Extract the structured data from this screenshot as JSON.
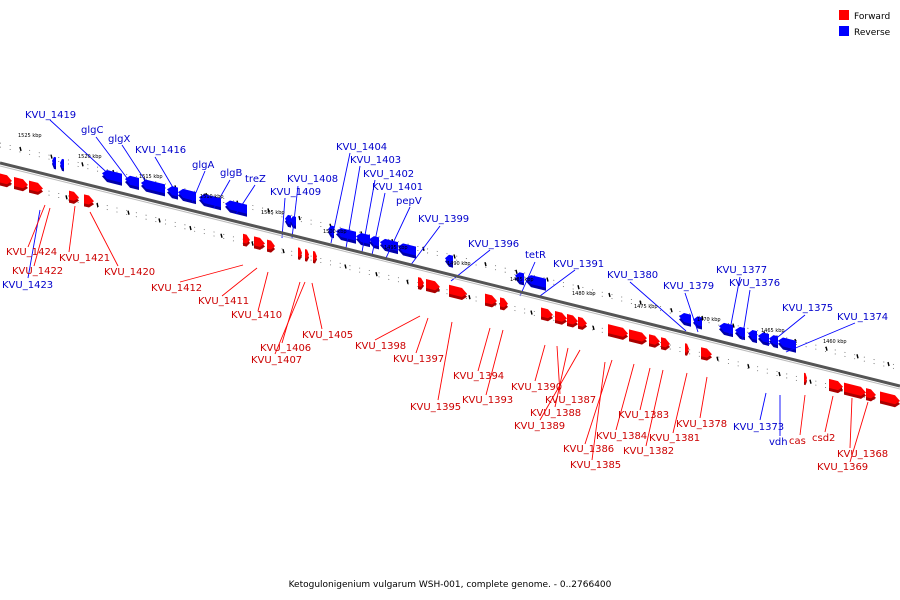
{
  "legend": {
    "items": [
      {
        "label": "Forward",
        "color": "#ff0000"
      },
      {
        "label": "Reverse",
        "color": "#0000ff"
      }
    ]
  },
  "caption": "Ketogulonigenium vulgarum WSH-001, complete genome. - 0..2766400",
  "colors": {
    "forward": "#ff0000",
    "forward_label": "#cc0000",
    "reverse": "#0000ff",
    "reverse_label": "#0000cc",
    "backbone": "#888888"
  },
  "ticks": [
    "1525 kbp",
    "1520 kbp",
    "1515 kbp",
    "1510 kbp",
    "1505 kbp",
    "1500 kbp",
    "1495 kbp",
    "1490 kbp",
    "1485 kbp",
    "1480 kbp",
    "1475 kbp",
    "1470 kbp",
    "1465 kbp",
    "1460 kbp"
  ],
  "labels": {
    "reverse": [
      "KVU_1419",
      "glgC",
      "glgX",
      "KVU_1416",
      "glgA",
      "glgB",
      "treZ",
      "KVU_1408",
      "KVU_1409",
      "KVU_1404",
      "KVU_1403",
      "KVU_1402",
      "KVU_1401",
      "pepV",
      "KVU_1399",
      "KVU_1396",
      "tetR",
      "KVU_1391",
      "KVU_1380",
      "KVU_1379",
      "KVU_1377",
      "KVU_1376",
      "KVU_1375",
      "KVU_1374",
      "KVU_1373",
      "vdh",
      "KVU_1423"
    ],
    "forward": [
      "KVU_1424",
      "KVU_1422",
      "KVU_1421",
      "KVU_1420",
      "KVU_1412",
      "KVU_1411",
      "KVU_1410",
      "KVU_1406",
      "KVU_1407",
      "KVU_1405",
      "KVU_1398",
      "KVU_1397",
      "KVU_1395",
      "KVU_1394",
      "KVU_1393",
      "KVU_1390",
      "KVU_1387",
      "KVU_1388",
      "KVU_1389",
      "KVU_1386",
      "KVU_1385",
      "KVU_1384",
      "KVU_1383",
      "KVU_1382",
      "KVU_1381",
      "KVU_1378",
      "cas",
      "csd2",
      "KVU_1368",
      "KVU_1369"
    ]
  }
}
